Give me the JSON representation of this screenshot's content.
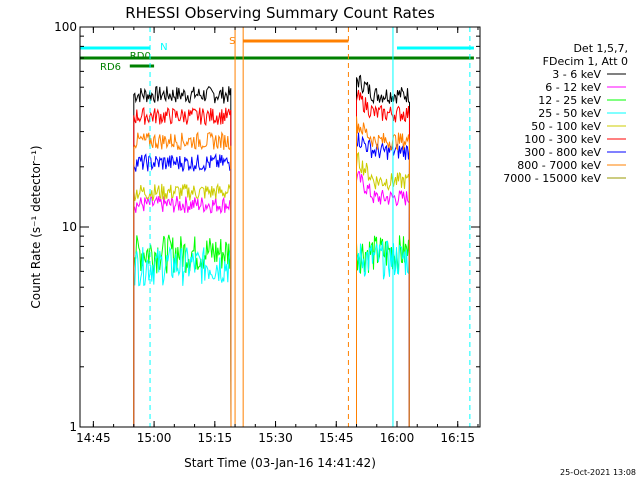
{
  "chart_data": {
    "type": "line",
    "title": "RHESSI Observing Summary Count Rates",
    "xlabel": "Start Time (03-Jan-16 14:41:42)",
    "ylabel": "Count Rate (s⁻¹ detector⁻¹)",
    "yscale": "log",
    "ylim": [
      1,
      100
    ],
    "xlim": [
      "14:41:42",
      "16:20:30"
    ],
    "y_ticks": [
      "1",
      "10",
      "100"
    ],
    "x_ticks": [
      "14:45",
      "15:00",
      "15:15",
      "15:30",
      "15:45",
      "16:00",
      "16:15"
    ],
    "legend_position": "right",
    "legend_header": [
      "Det 1,5,7,",
      "FDecim 1, Att 0"
    ],
    "timestamp": "25-Oct-2021 13:08",
    "series": [
      {
        "name": "3 - 6 keV",
        "color": "#000000",
        "segments": [
          {
            "start": "14:55",
            "end": "15:19",
            "level": 46
          },
          {
            "start": "15:50",
            "end": "16:03",
            "level": 46,
            "peak": 55
          }
        ]
      },
      {
        "name": "6 - 12 keV",
        "color": "#ff00ff",
        "segments": [
          {
            "start": "14:55",
            "end": "15:19",
            "level": 13
          },
          {
            "start": "15:50",
            "end": "16:03",
            "level": 14,
            "peak": 18
          }
        ]
      },
      {
        "name": "12 - 25 keV",
        "color": "#00ff00",
        "segments": [
          {
            "start": "14:55",
            "end": "15:19",
            "level": 7.5
          },
          {
            "start": "15:50",
            "end": "16:03",
            "level": 7.5
          }
        ]
      },
      {
        "name": "25 - 50 keV",
        "color": "#00ffff",
        "segments": [
          {
            "start": "14:55",
            "end": "15:19",
            "level": 6.5
          },
          {
            "start": "15:50",
            "end": "16:03",
            "level": 7
          }
        ]
      },
      {
        "name": "50 - 100 keV",
        "color": "#cccc00",
        "segments": [
          {
            "start": "14:55",
            "end": "15:19",
            "level": 15
          },
          {
            "start": "15:50",
            "end": "16:03",
            "level": 17,
            "peak": 22
          }
        ]
      },
      {
        "name": "100 - 300 keV",
        "color": "#ff0000",
        "segments": [
          {
            "start": "14:55",
            "end": "15:19",
            "level": 36
          },
          {
            "start": "15:50",
            "end": "16:03",
            "level": 37,
            "peak": 45
          }
        ]
      },
      {
        "name": "300 - 800 keV",
        "color": "#0000ff",
        "segments": [
          {
            "start": "14:55",
            "end": "15:19",
            "level": 21
          },
          {
            "start": "15:50",
            "end": "16:03",
            "level": 24,
            "peak": 28
          }
        ]
      },
      {
        "name": "800 - 7000 keV",
        "color": "#ff8000",
        "segments": [
          {
            "start": "14:55",
            "end": "15:19",
            "level": 27
          },
          {
            "start": "15:50",
            "end": "16:03",
            "level": 27,
            "peak": 33
          }
        ]
      },
      {
        "name": "7000 - 15000 keV",
        "color": "#999900",
        "segments": []
      }
    ],
    "flags": [
      {
        "label": "N",
        "color": "#00ffff",
        "segments": [
          {
            "start": "14:41:42",
            "end": "14:59"
          },
          {
            "start": "16:00",
            "end": "16:19"
          }
        ]
      },
      {
        "label": "S",
        "color": "#ff8000",
        "segments": [
          {
            "start": "15:22",
            "end": "15:48"
          }
        ]
      },
      {
        "label": "RD0",
        "color": "#008000",
        "segments": [
          {
            "start": "14:41:42",
            "end": "16:19"
          }
        ]
      },
      {
        "label": "RD6",
        "color": "#008000",
        "segments": [
          {
            "start": "14:54",
            "end": "15:00"
          }
        ]
      }
    ],
    "event_lines": [
      {
        "time": "14:41:42",
        "color": "#00ffff",
        "style": "solid"
      },
      {
        "time": "14:59",
        "color": "#00ffff",
        "style": "dashed"
      },
      {
        "time": "15:20",
        "color": "#ff8000",
        "style": "solid"
      },
      {
        "time": "15:22",
        "color": "#ff8000",
        "style": "solid"
      },
      {
        "time": "15:48",
        "color": "#ff8000",
        "style": "dashed"
      },
      {
        "time": "15:59",
        "color": "#00ffff",
        "style": "solid"
      },
      {
        "time": "16:18",
        "color": "#00ffff",
        "style": "dashed"
      }
    ]
  }
}
